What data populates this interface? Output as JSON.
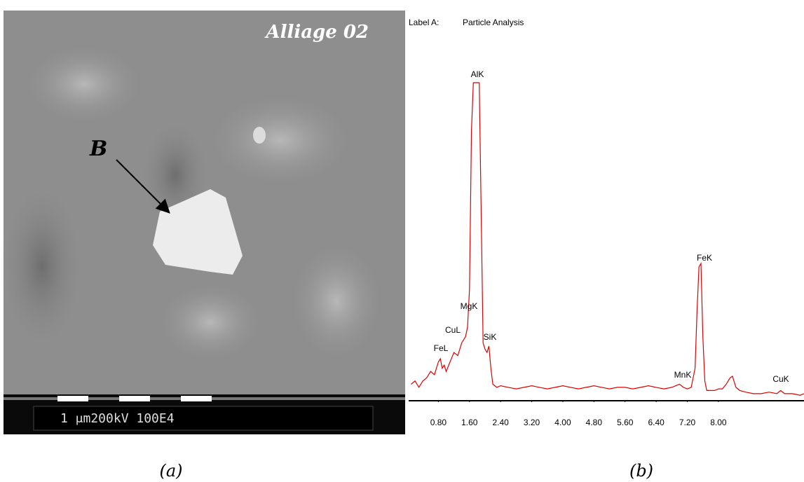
{
  "figure": {
    "panel_a": {
      "title": "Alliage 02",
      "marker": "B",
      "scale_bar": "1 μm200kV 100E4",
      "caption": "(a)"
    },
    "panel_b": {
      "caption": "(b)"
    }
  },
  "chart_data": {
    "type": "line",
    "label_key": "Label A:",
    "title": "Particle Analysis",
    "color": "#e00000",
    "peak_labels": [
      "AlK",
      "FeK",
      "MgK",
      "CuL",
      "FeL",
      "SiK",
      "MnK",
      "CuK"
    ],
    "x": [
      0.1,
      0.2,
      0.3,
      0.4,
      0.5,
      0.6,
      0.7,
      0.8,
      0.85,
      0.9,
      0.95,
      1.0,
      1.1,
      1.2,
      1.3,
      1.4,
      1.5,
      1.55,
      1.6,
      1.65,
      1.7,
      1.75,
      1.8,
      1.85,
      1.9,
      1.95,
      2.0,
      2.05,
      2.1,
      2.15,
      2.2,
      2.3,
      2.4,
      2.6,
      2.8,
      3.0,
      3.2,
      3.4,
      3.6,
      3.8,
      4.0,
      4.2,
      4.4,
      4.6,
      4.8,
      5.0,
      5.2,
      5.4,
      5.6,
      5.8,
      6.0,
      6.2,
      6.4,
      6.6,
      6.8,
      7.0,
      7.1,
      7.2,
      7.3,
      7.4,
      7.45,
      7.5,
      7.55,
      7.6,
      7.65,
      7.7,
      7.75,
      7.8,
      7.9,
      8.0,
      8.1,
      8.2,
      8.3,
      8.36,
      8.45,
      8.55,
      8.7,
      8.9,
      9.1,
      9.3,
      9.5,
      9.6,
      9.7,
      9.9,
      10.1,
      10.2
    ],
    "values": [
      5,
      6,
      4,
      6,
      7,
      9,
      8,
      12,
      13,
      10,
      11,
      9,
      12,
      15,
      14,
      18,
      20,
      23,
      35,
      85,
      100,
      100,
      100,
      100,
      60,
      18,
      16,
      15,
      17,
      10,
      5,
      4,
      4.5,
      4,
      3.5,
      4,
      4.5,
      4,
      3.5,
      4,
      4.5,
      4,
      3.5,
      4,
      4.5,
      4,
      3.5,
      4,
      4,
      3.5,
      4,
      4.5,
      4,
      3.5,
      4,
      5,
      4,
      3.5,
      4,
      10,
      28,
      42,
      43,
      20,
      6,
      3,
      3,
      3,
      3,
      3.5,
      3.5,
      5,
      7,
      7.5,
      4,
      3,
      2.5,
      2,
      2,
      2.5,
      2,
      3,
      2,
      2,
      1.5,
      2
    ],
    "xlim": [
      0,
      10.2
    ],
    "ylim": [
      0,
      100
    ],
    "xticks": [
      {
        "value": 0.8,
        "label": "0.80"
      },
      {
        "value": 1.6,
        "label": "1.60"
      },
      {
        "value": 2.4,
        "label": "2.40"
      },
      {
        "value": 3.2,
        "label": "3.20"
      },
      {
        "value": 4.0,
        "label": "4.00"
      },
      {
        "value": 4.8,
        "label": "4.80"
      },
      {
        "value": 5.6,
        "label": "5.60"
      },
      {
        "value": 6.4,
        "label": "6.40"
      },
      {
        "value": 7.2,
        "label": "7.20"
      },
      {
        "value": 8.0,
        "label": "8.00"
      }
    ]
  }
}
